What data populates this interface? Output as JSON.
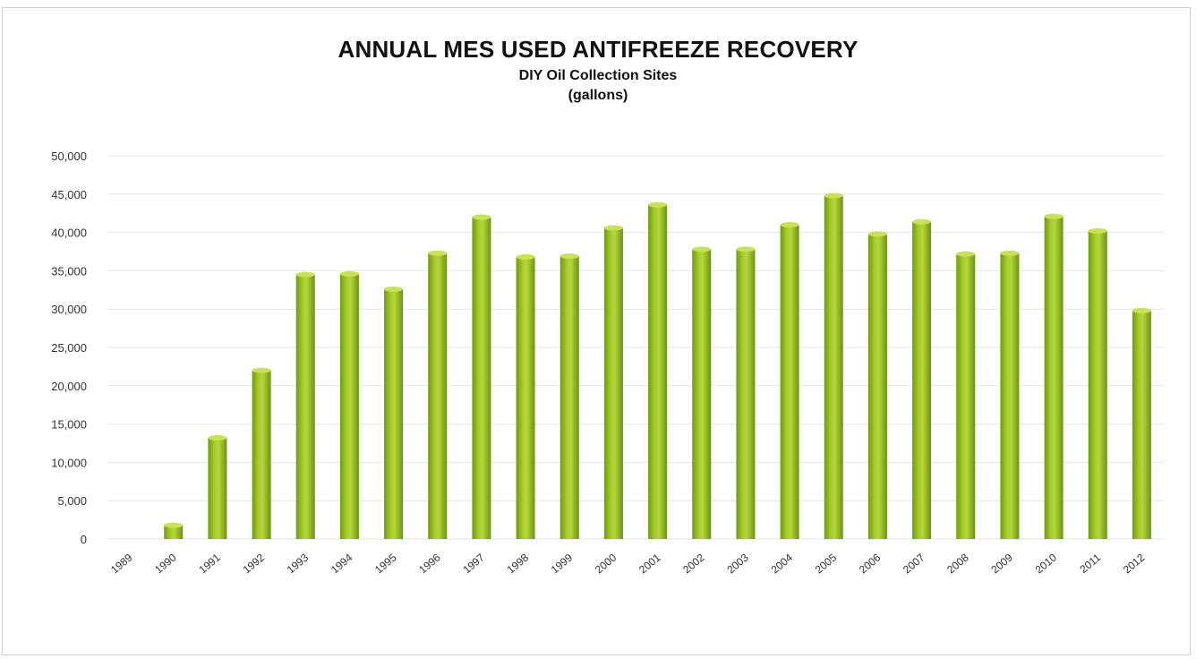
{
  "chart_data": {
    "type": "bar",
    "title": "ANNUAL MES USED ANTIFREEZE RECOVERY",
    "subtitle": "DIY Oil Collection Sites",
    "subtitle2": "(gallons)",
    "xlabel": "",
    "ylabel": "",
    "ylim": [
      0,
      50000
    ],
    "y_ticks": [
      "0",
      "5,000",
      "10,000",
      "15,000",
      "20,000",
      "25,000",
      "30,000",
      "35,000",
      "40,000",
      "45,000",
      "50,000"
    ],
    "y_tick_values": [
      0,
      5000,
      10000,
      15000,
      20000,
      25000,
      30000,
      35000,
      40000,
      45000,
      50000
    ],
    "categories": [
      "1989",
      "1990",
      "1991",
      "1992",
      "1993",
      "1994",
      "1995",
      "1996",
      "1997",
      "1998",
      "1999",
      "2000",
      "2001",
      "2002",
      "2003",
      "2004",
      "2005",
      "2006",
      "2007",
      "2008",
      "2009",
      "2010",
      "2011",
      "2012"
    ],
    "values": [
      0,
      1800,
      13200,
      22000,
      34500,
      34600,
      32600,
      37300,
      42000,
      36800,
      36900,
      40600,
      43600,
      37800,
      37800,
      41000,
      44800,
      39800,
      41400,
      37200,
      37300,
      42100,
      40200,
      29800
    ],
    "grid": true,
    "legend": "none",
    "bar_color": "#8ab81e",
    "bar_highlight": "#c9e05a",
    "bar_shadow": "#5f8a10"
  }
}
